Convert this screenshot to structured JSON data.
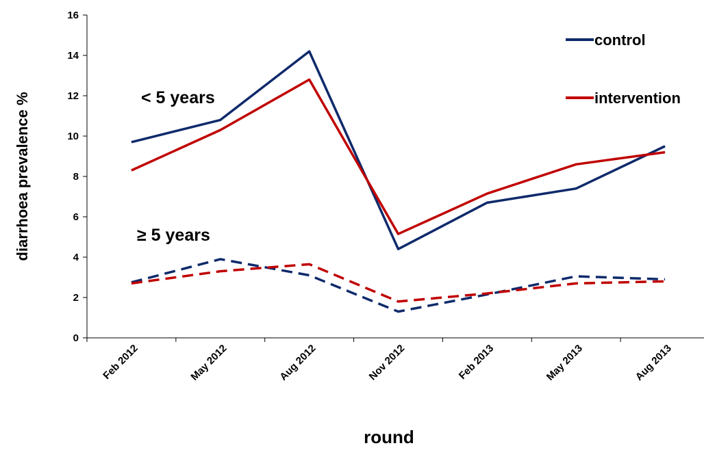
{
  "chart_data": {
    "type": "line",
    "xlabel": "round",
    "ylabel": "diarrhoea prevalence %",
    "ylim": [
      0,
      16
    ],
    "yticks": [
      "0",
      "2",
      "4",
      "6",
      "8",
      "10",
      "12",
      "14",
      "16"
    ],
    "categories": [
      "Feb 2012",
      "May 2012",
      "Aug 2012",
      "Nov 2012",
      "Feb 2013",
      "May 2013",
      "Aug 2013"
    ],
    "annotations": [
      "< 5 years",
      "≥ 5 years"
    ],
    "legend_position": "top-right",
    "grid": false,
    "series": [
      {
        "name": "control",
        "group": "< 5 years",
        "style": "solid",
        "color": "#0f2a6b",
        "values": [
          9.7,
          10.8,
          14.2,
          4.4,
          6.7,
          7.4,
          9.5
        ]
      },
      {
        "name": "intervention",
        "group": "< 5 years",
        "style": "solid",
        "color": "#c00000",
        "values": [
          8.3,
          10.3,
          12.8,
          5.15,
          7.15,
          8.6,
          9.2
        ]
      },
      {
        "name": "control",
        "group": "≥ 5 years",
        "style": "dashed",
        "color": "#0f2a6b",
        "values": [
          2.75,
          3.9,
          3.1,
          1.3,
          2.15,
          3.05,
          2.9
        ]
      },
      {
        "name": "intervention",
        "group": "≥ 5 years",
        "style": "dashed",
        "color": "#c00000",
        "values": [
          2.7,
          3.3,
          3.65,
          1.8,
          2.2,
          2.7,
          2.8
        ]
      }
    ],
    "legend": [
      {
        "label": "control",
        "color": "#0f2a6b"
      },
      {
        "label": "intervention",
        "color": "#c00000"
      }
    ]
  }
}
